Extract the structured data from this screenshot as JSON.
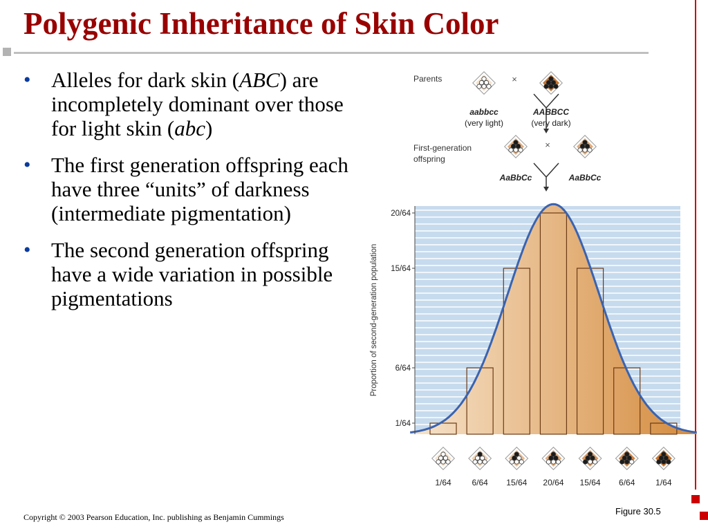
{
  "title": "Polygenic Inheritance of Skin Color",
  "bullets": [
    {
      "parts": [
        "Alleles for dark skin (",
        "ABC",
        ") are incompletely dominant over those for light skin (",
        "abc",
        ")"
      ]
    },
    {
      "text": "The first generation offspring each have three “units” of darkness (intermediate pigmentation)"
    },
    {
      "text": "The second generation offspring have a wide variation in possible pigmentations"
    }
  ],
  "figure": {
    "parents_label": "Parents",
    "cross_symbol": "×",
    "parent1_genotype": "aabbcc",
    "parent1_desc": "(very light)",
    "parent2_genotype": "AABBCC",
    "parent2_desc": "(very dark)",
    "f1_label_line1": "First-generation",
    "f1_label_line2": "offspring",
    "f1_genotype_left": "AaBbCc",
    "f1_genotype_right": "AaBbCc",
    "y_axis_label": "Proportion of second-generation population",
    "caption": "Figure 30.5"
  },
  "chart_data": {
    "type": "bar",
    "categories": [
      "1/64",
      "6/64",
      "15/64",
      "20/64",
      "15/64",
      "6/64",
      "1/64"
    ],
    "values": [
      1,
      6,
      15,
      20,
      15,
      6,
      1
    ],
    "dark_alleles": [
      0,
      1,
      2,
      3,
      4,
      5,
      6
    ],
    "y_ticks": [
      {
        "value": 1,
        "label": "1/64"
      },
      {
        "value": 6,
        "label": "6/64"
      },
      {
        "value": 15,
        "label": "15/64"
      },
      {
        "value": 20,
        "label": "20/64"
      }
    ],
    "ylim": [
      0,
      20
    ],
    "ylabel": "Proportion of second-generation population",
    "overlay": "normal curve",
    "colors": {
      "grid_bg": "#c7dbee",
      "curve": "#3a63b0",
      "fill_light": "#f6dfc3",
      "fill_dark": "#d48a3c"
    }
  },
  "copyright": "Copyright © 2003 Pearson Education, Inc. publishing as Benjamin Cummings"
}
